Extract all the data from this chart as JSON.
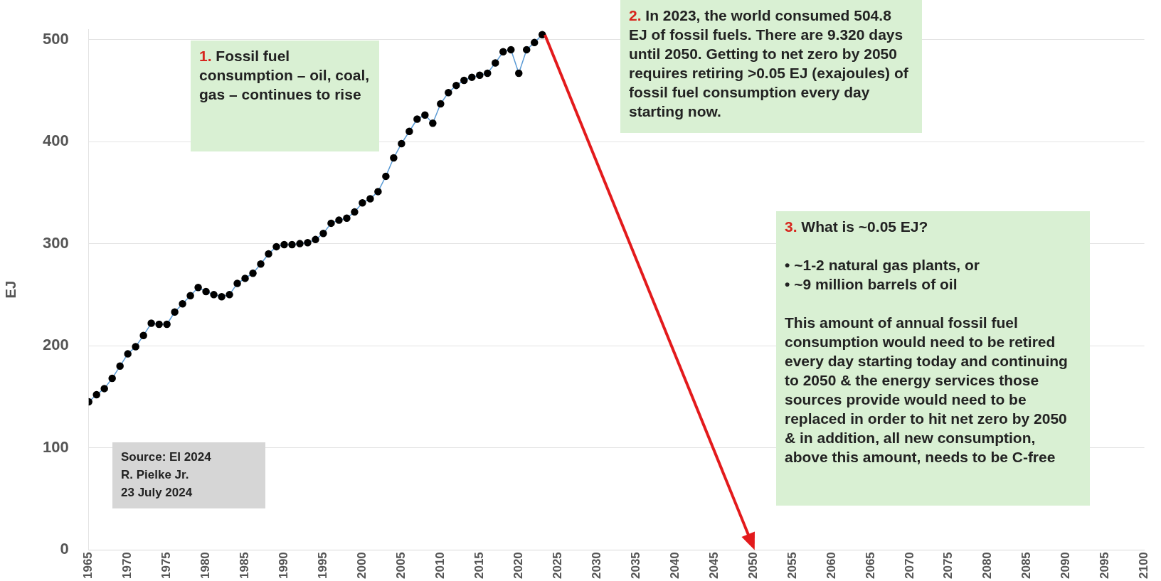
{
  "chart_data": {
    "type": "line",
    "ylabel": "EJ",
    "x": [
      1965,
      1966,
      1967,
      1968,
      1969,
      1970,
      1971,
      1972,
      1973,
      1974,
      1975,
      1976,
      1977,
      1978,
      1979,
      1980,
      1981,
      1982,
      1983,
      1984,
      1985,
      1986,
      1987,
      1988,
      1989,
      1990,
      1991,
      1992,
      1993,
      1994,
      1995,
      1996,
      1997,
      1998,
      1999,
      2000,
      2001,
      2002,
      2003,
      2004,
      2005,
      2006,
      2007,
      2008,
      2009,
      2010,
      2011,
      2012,
      2013,
      2014,
      2015,
      2016,
      2017,
      2018,
      2019,
      2020,
      2021,
      2022,
      2023
    ],
    "series": [
      {
        "color": "#5b9bd5",
        "values": [
          145,
          152,
          158,
          168,
          180,
          192,
          199,
          210,
          222,
          221,
          221,
          233,
          241,
          249,
          257,
          253,
          250,
          248,
          250,
          261,
          266,
          271,
          280,
          290,
          297,
          299,
          299,
          300,
          301,
          304,
          310,
          320,
          323,
          325,
          331,
          340,
          344,
          351,
          366,
          384,
          398,
          410,
          422,
          426,
          418,
          437,
          448,
          455,
          460,
          463,
          465,
          467,
          477,
          488,
          490,
          467,
          490,
          497,
          504.8
        ]
      }
    ],
    "marker": "circle",
    "grid": "y",
    "legend": false,
    "xlim": [
      1965,
      2100
    ],
    "xticks": [
      1965,
      1970,
      1975,
      1980,
      1985,
      1990,
      1995,
      2000,
      2005,
      2010,
      2015,
      2020,
      2025,
      2030,
      2035,
      2040,
      2045,
      2050,
      2055,
      2060,
      2065,
      2070,
      2075,
      2080,
      2085,
      2090,
      2095,
      2100
    ],
    "ylim": [
      0,
      510
    ],
    "yticks": [
      0,
      100,
      200,
      300,
      400,
      500
    ],
    "annotations": [
      "1. Fossil fuel consumption – oil, coal, gas – continues to rise",
      "2. In 2023, the world consumed 504.8 EJ of fossil fuels.  There are 9.320 days until 2050. Getting to net zero by 2050 requires retiring >0.05 EJ (exajoules) of fossil fuel consumption every day starting now.",
      "3. What is ~0.05 EJ?\n\n•   ~1-2 natural gas plants, or\n•   ~9 million barrels of oil\n\nThis amount of annual fossil fuel consumption would need to be retired every day starting today and continuing to 2050 & the energy services those sources provide would need to be replaced in order to hit net zero by 2050 & in addition, all new consumption, above this amount, needs to be C-free",
      "Source: EI 2024\nR. Pielke Jr.\n23 July 2024"
    ]
  }
}
